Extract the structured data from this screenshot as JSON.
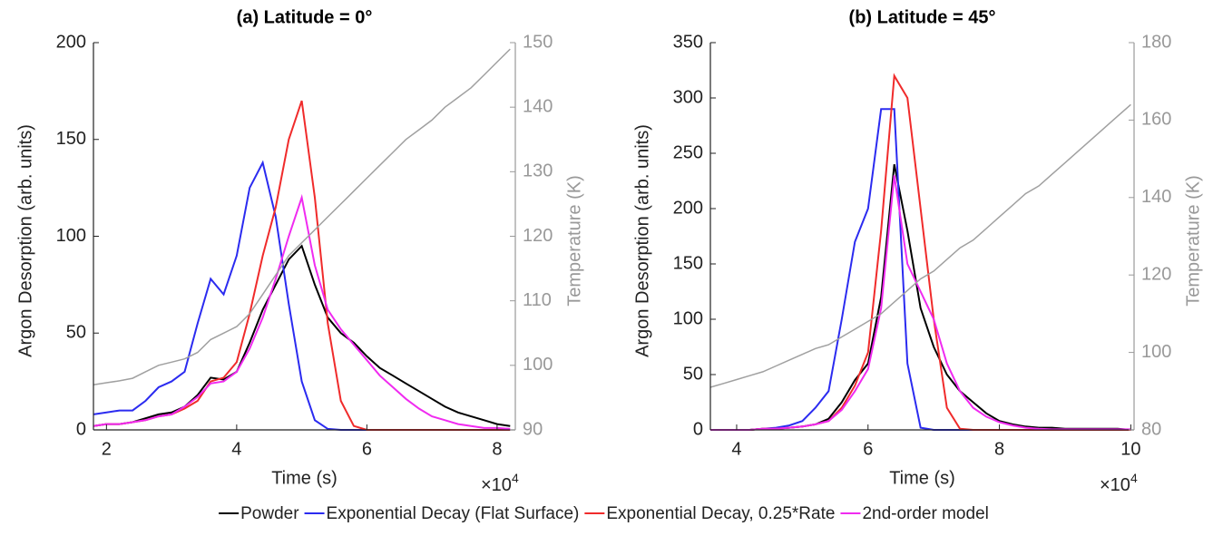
{
  "chart_data": [
    {
      "type": "line",
      "title": "(a) Latitude = 0°",
      "xlabel": "Time (s)",
      "ylabel": "Argon Desorption (arb. units)",
      "y2label": "Temperature (K)",
      "x_offset_label": {
        "base": "×10",
        "exponent": "4"
      },
      "xlim": [
        1.8,
        8.28
      ],
      "xticks": [
        2,
        4,
        6,
        8
      ],
      "ylim": [
        0,
        200
      ],
      "yticks": [
        0,
        50,
        100,
        150,
        200
      ],
      "y2lim": [
        90,
        150
      ],
      "y2ticks": [
        90,
        100,
        110,
        120,
        130,
        140,
        150
      ],
      "legend": "bottom",
      "x": [
        1.8,
        2.0,
        2.2,
        2.4,
        2.6,
        2.8,
        3.0,
        3.2,
        3.4,
        3.6,
        3.8,
        4.0,
        4.2,
        4.4,
        4.6,
        4.8,
        5.0,
        5.2,
        5.4,
        5.6,
        5.8,
        6.0,
        6.2,
        6.4,
        6.6,
        6.8,
        7.0,
        7.2,
        7.4,
        7.6,
        7.8,
        8.0,
        8.2
      ],
      "series": [
        {
          "name": "Powder",
          "color": "#000000",
          "values": [
            2,
            3,
            3,
            4,
            6,
            8,
            9,
            12,
            18,
            27,
            26,
            30,
            45,
            62,
            75,
            88,
            95,
            75,
            58,
            50,
            45,
            38,
            32,
            28,
            24,
            20,
            16,
            12,
            9,
            7,
            5,
            3,
            2
          ]
        },
        {
          "name": "Exponential Decay (Flat Surface)",
          "color": "#2b2bf0",
          "values": [
            8,
            9,
            10,
            10,
            15,
            22,
            25,
            30,
            55,
            78,
            70,
            90,
            125,
            138,
            110,
            65,
            25,
            5,
            0.5,
            0,
            0,
            0,
            0,
            0,
            0,
            0,
            0,
            0,
            0,
            0,
            0,
            0,
            0
          ]
        },
        {
          "name": "Exponential Decay, 0.25*Rate",
          "color": "#f02b2b",
          "values": [
            2,
            3,
            3,
            4,
            5,
            7,
            8,
            11,
            15,
            25,
            27,
            35,
            60,
            90,
            115,
            150,
            170,
            120,
            55,
            15,
            2,
            0,
            0,
            0,
            0,
            0,
            0,
            0,
            0,
            0,
            0,
            0,
            0
          ]
        },
        {
          "name": "2nd-order model",
          "color": "#f02bf0",
          "values": [
            2,
            3,
            3,
            4,
            5,
            7,
            8,
            12,
            17,
            24,
            25,
            30,
            42,
            58,
            78,
            100,
            120,
            85,
            62,
            52,
            44,
            36,
            28,
            22,
            16,
            11,
            7,
            5,
            3,
            2,
            1,
            1,
            0.5
          ]
        },
        {
          "color": "#a0a0a0",
          "axis": "y2",
          "values": [
            97,
            97.3,
            97.6,
            98,
            99,
            100,
            100.5,
            101,
            102,
            104,
            105,
            106,
            108,
            111,
            114,
            117,
            119,
            121,
            123,
            125,
            127,
            129,
            131,
            133,
            135,
            136.5,
            138,
            140,
            141.5,
            143,
            145,
            147,
            149
          ]
        }
      ]
    },
    {
      "type": "line",
      "title": "(b) Latitude = 45°",
      "xlabel": "Time (s)",
      "ylabel": "Argon Desorption (arb. units)",
      "y2label": "Temperature (K)",
      "x_offset_label": {
        "base": "×10",
        "exponent": "4"
      },
      "xlim": [
        3.6,
        10.05
      ],
      "xticks": [
        4,
        6,
        8,
        10
      ],
      "ylim": [
        0,
        350
      ],
      "yticks": [
        0,
        50,
        100,
        150,
        200,
        250,
        300,
        350
      ],
      "y2lim": [
        80,
        180
      ],
      "y2ticks": [
        80,
        100,
        120,
        140,
        160,
        180
      ],
      "x": [
        3.6,
        3.8,
        4.0,
        4.2,
        4.4,
        4.6,
        4.8,
        5.0,
        5.2,
        5.4,
        5.6,
        5.8,
        6.0,
        6.2,
        6.4,
        6.6,
        6.8,
        7.0,
        7.2,
        7.4,
        7.6,
        7.8,
        8.0,
        8.2,
        8.4,
        8.6,
        8.8,
        9.0,
        9.2,
        9.4,
        9.6,
        9.8,
        10.0
      ],
      "series": [
        {
          "color": "#000000",
          "values": [
            0,
            0,
            0,
            0,
            1,
            1,
            2,
            3,
            5,
            10,
            25,
            45,
            60,
            120,
            240,
            180,
            110,
            75,
            50,
            35,
            25,
            15,
            8,
            5,
            3,
            2,
            2,
            1,
            1,
            1,
            1,
            1,
            0
          ]
        },
        {
          "color": "#2b2bf0",
          "values": [
            0,
            0,
            0,
            0,
            1,
            2,
            4,
            8,
            20,
            35,
            100,
            170,
            200,
            290,
            290,
            60,
            2,
            0,
            0,
            0,
            0,
            0,
            0,
            0,
            0,
            0,
            0,
            0,
            0,
            0,
            0,
            0,
            0
          ]
        },
        {
          "color": "#f02b2b",
          "values": [
            0,
            0,
            0,
            0,
            1,
            1,
            2,
            3,
            5,
            8,
            20,
            40,
            70,
            180,
            320,
            300,
            200,
            100,
            20,
            1,
            0,
            0,
            0,
            0,
            0,
            0,
            0,
            0,
            0,
            0,
            0,
            0,
            0
          ]
        },
        {
          "color": "#f02bf0",
          "values": [
            0,
            0,
            0,
            0,
            1,
            1,
            2,
            3,
            5,
            8,
            18,
            35,
            55,
            110,
            230,
            150,
            125,
            100,
            60,
            35,
            20,
            12,
            7,
            4,
            2,
            1,
            0.5,
            0.5,
            0.5,
            0.5,
            0.5,
            0.5,
            0.5
          ]
        },
        {
          "color": "#a0a0a0",
          "axis": "y2",
          "values": [
            91,
            92,
            93,
            94,
            95,
            96.5,
            98,
            99.5,
            101,
            102,
            104,
            106,
            108,
            110,
            113,
            116,
            119,
            121,
            124,
            127,
            129,
            132,
            135,
            138,
            141,
            143,
            146,
            149,
            152,
            155,
            158,
            161,
            164
          ]
        }
      ]
    }
  ]
}
